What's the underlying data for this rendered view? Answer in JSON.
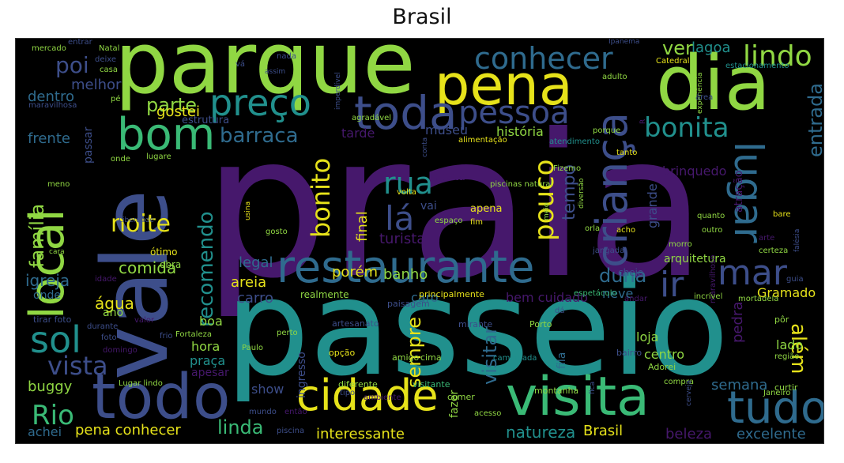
{
  "title": "Brasil",
  "colors": {
    "purple": "#46186c",
    "indigo": "#3d4e8a",
    "blue": "#2f6b8e",
    "teal": "#21908d",
    "green": "#3aba76",
    "lime": "#90d743",
    "yellow": "#e6e21a",
    "dark": "#3b0f6a"
  },
  "words": [
    "praia",
    "passeio",
    "parque",
    "vale",
    "dia",
    "local",
    "todo",
    "pena",
    "restaurante",
    "visita",
    "bom",
    "cidade",
    "criança",
    "toda",
    "tudo",
    "preço",
    "lugar",
    "conhecer",
    "pessoa",
    "sol",
    "lindo",
    "bonita",
    "mar",
    "ir",
    "noite",
    "rua",
    "lá",
    "pouco",
    "vista",
    "Rio",
    "bonito",
    "barraca",
    "recomendo",
    "visitar",
    "sempre",
    "duna",
    "além",
    "família",
    "poi",
    "parte",
    "ver",
    "lagoa",
    "entrada",
    "tempo",
    "gostei",
    "comida",
    "igreja",
    "água",
    "linda",
    "natureza",
    "interessante",
    "pena conhecer",
    "excelente",
    "semana",
    "beleza",
    "Brasil",
    "achei",
    "buggy",
    "frente",
    "melhor",
    "dentro",
    "estrutura",
    "passar",
    "final",
    "turista",
    "banho",
    "porém",
    "areia",
    "legal",
    "carro",
    "caro",
    "bem cuidado",
    "neve",
    "loja",
    "centro",
    "lado",
    "hora",
    "boa",
    "praça",
    "apesar",
    "show",
    "ingresso",
    "fazer",
    "fila",
    "pedra",
    "atração",
    "grande",
    "brinquedo",
    "museu",
    "tarde",
    "história",
    "gosta",
    "apena",
    "vai",
    "onde",
    "ano",
    "ótimo",
    "obra",
    "idade",
    "arquitetura",
    "cheio",
    "Gramado",
    "realmente",
    "paisagem",
    "principalmente",
    "espetáculo",
    "mirante",
    "Porto",
    "bairro",
    "Adorei",
    "região",
    "artesanato",
    "opção",
    "amigo",
    "cima",
    "caminhada",
    "visitante",
    "comer",
    "montanha",
    "compra",
    "Janeiro",
    "curtir",
    "pôr",
    "tirar foto",
    "durante",
    "valor",
    "foto",
    "domingo",
    "frio",
    "Fortaleza",
    "Paulo",
    "perto",
    "Lugar lindo",
    "diferente",
    "tipo",
    "ambiente",
    "acesso",
    "fica",
    "cerveja",
    "mundo",
    "então",
    "piscina",
    "mercado",
    "entrar",
    "Natal",
    "casa",
    "deixe",
    "vá",
    "nada",
    "assim",
    "imperdível",
    "agradável",
    "Ipanema",
    "adulto",
    "Catedral",
    "estacionamento",
    "experiência",
    "maravilhosa",
    "pé",
    "alimentação",
    "conta",
    "porque",
    "atendimento",
    "tanto",
    "onde",
    "lugare",
    "meno",
    "Liberdade",
    "usina",
    "gosto",
    "volta",
    "piscinas naturai",
    "Fizemo",
    "meio",
    "diversão",
    "fim",
    "espaço",
    "orla",
    "acho",
    "jangada",
    "morro",
    "quanto",
    "outro",
    "bare",
    "arte",
    "certeza",
    "falésia",
    "maravilhoso",
    "incrível",
    "andar",
    "mortadela",
    "dá",
    "área",
    "cara",
    "guia",
    "R",
    "agradeça"
  ]
}
